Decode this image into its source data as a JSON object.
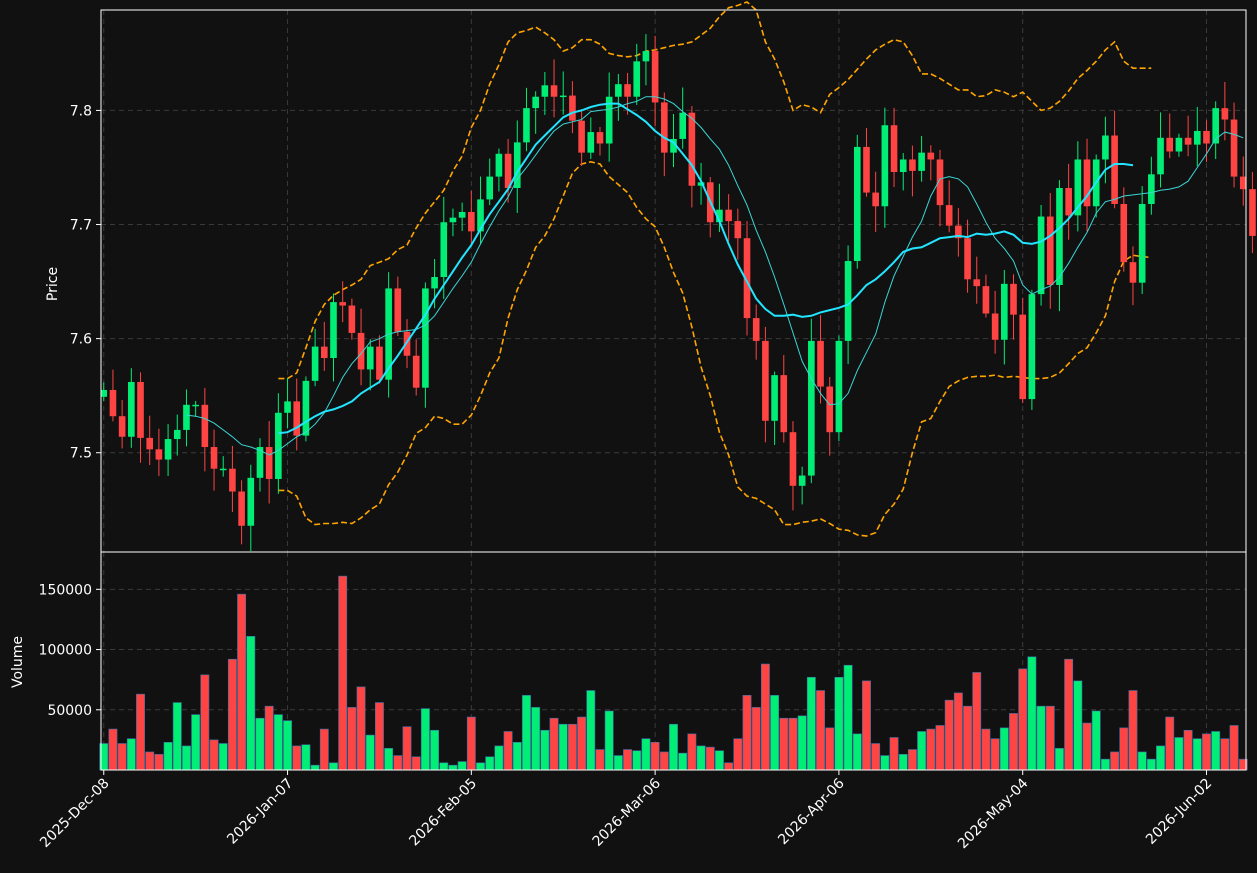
{
  "chart_data": {
    "type": "candlestick",
    "colors": {
      "background": "#111111",
      "grid": "#3a3a3a",
      "frame": "#ffffff",
      "up": "#00ee76",
      "down": "#ff4444",
      "ma_short": "#3ad6d6",
      "ma_long": "#22e5ff",
      "bollinger": "#ffa500"
    },
    "x_ticks": [
      "2025-Dec-08",
      "2026-Jan-07",
      "2026-Feb-05",
      "2026-Mar-06",
      "2026-Apr-06",
      "2026-May-04",
      "2026-Jun-02"
    ],
    "x_tick_indices": [
      0,
      20,
      40,
      60,
      80,
      100,
      120
    ],
    "x_range": [
      -0.3,
      124.3
    ],
    "price_panel": {
      "ylabel": "Price",
      "ylim": [
        7.413,
        7.888
      ],
      "y_ticks": [
        7.5,
        7.6,
        7.7,
        7.8
      ],
      "closes": [
        7.555,
        7.532,
        7.514,
        7.562,
        7.513,
        7.503,
        7.494,
        7.512,
        7.52,
        7.542,
        7.542,
        7.505,
        7.486,
        7.486,
        7.466,
        7.436,
        7.478,
        7.505,
        7.477,
        7.535,
        7.545,
        7.515,
        7.563,
        7.593,
        7.583,
        7.632,
        7.629,
        7.605,
        7.573,
        7.593,
        7.564,
        7.644,
        7.606,
        7.585,
        7.557,
        7.644,
        7.654,
        7.702,
        7.706,
        7.711,
        7.694,
        7.722,
        7.742,
        7.762,
        7.732,
        7.772,
        7.802,
        7.812,
        7.822,
        7.812,
        7.813,
        7.791,
        7.763,
        7.781,
        7.771,
        7.812,
        7.823,
        7.812,
        7.843,
        7.852,
        7.807,
        7.763,
        7.775,
        7.798,
        7.734,
        7.737,
        7.702,
        7.713,
        7.703,
        7.688,
        7.618,
        7.598,
        7.528,
        7.568,
        7.518,
        7.471,
        7.48,
        7.598,
        7.558,
        7.518,
        7.598,
        7.668,
        7.768,
        7.728,
        7.716,
        7.787,
        7.746,
        7.757,
        7.747,
        7.763,
        7.757,
        7.717,
        7.699,
        7.688,
        7.652,
        7.646,
        7.622,
        7.599,
        7.648,
        7.621,
        7.547,
        7.639,
        7.707,
        7.647,
        7.732,
        7.708,
        7.757,
        7.716,
        7.757,
        7.778,
        7.718,
        7.667,
        7.649,
        7.718,
        7.744,
        7.776,
        7.764,
        7.776,
        7.77,
        7.782,
        7.771,
        7.802,
        7.792,
        7.742,
        7.731,
        7.69
      ],
      "ma_short": [
        null,
        null,
        null,
        null,
        null,
        null,
        null,
        null,
        null,
        7.533,
        7.532,
        7.53,
        7.526,
        7.52,
        7.514,
        7.507,
        7.505,
        7.502,
        7.498,
        7.502,
        7.508,
        7.514,
        7.518,
        7.525,
        7.535,
        7.55,
        7.566,
        7.578,
        7.587,
        7.597,
        7.6,
        7.604,
        7.606,
        7.607,
        7.608,
        7.612,
        7.62,
        7.632,
        7.644,
        7.655,
        7.667,
        7.683,
        7.698,
        7.712,
        7.724,
        7.74,
        7.75,
        7.761,
        7.772,
        7.782,
        7.788,
        7.79,
        7.792,
        7.799,
        7.8,
        7.801,
        7.803,
        7.806,
        7.808,
        7.812,
        7.812,
        7.81,
        7.806,
        7.799,
        7.793,
        7.785,
        7.775,
        7.766,
        7.752,
        7.734,
        7.717,
        7.695,
        7.676,
        7.654,
        7.63,
        7.605,
        7.58,
        7.565,
        7.552,
        7.542,
        7.543,
        7.552,
        7.572,
        7.588,
        7.604,
        7.632,
        7.655,
        7.672,
        7.689,
        7.703,
        7.725,
        7.74,
        7.742,
        7.74,
        7.733,
        7.718,
        7.702,
        7.688,
        7.679,
        7.668,
        7.647,
        7.639,
        7.643,
        7.646,
        7.654,
        7.666,
        7.68,
        7.693,
        7.71,
        7.72,
        7.722,
        7.725,
        7.726,
        7.727,
        7.728,
        7.73,
        7.731,
        7.733,
        7.738,
        7.75,
        7.762,
        7.775,
        7.781,
        7.779,
        7.776
      ],
      "ma_long": [
        null,
        null,
        null,
        null,
        null,
        null,
        null,
        null,
        null,
        null,
        null,
        null,
        null,
        null,
        null,
        null,
        null,
        null,
        null,
        7.517,
        7.518,
        7.522,
        7.527,
        7.532,
        7.536,
        7.538,
        7.541,
        7.545,
        7.552,
        7.557,
        7.562,
        7.574,
        7.585,
        7.597,
        7.609,
        7.621,
        7.635,
        7.647,
        7.659,
        7.671,
        7.682,
        7.696,
        7.709,
        7.72,
        7.731,
        7.746,
        7.758,
        7.77,
        7.778,
        7.786,
        7.794,
        7.798,
        7.8,
        7.803,
        7.805,
        7.806,
        7.806,
        7.801,
        7.796,
        7.79,
        7.782,
        7.776,
        7.772,
        7.762,
        7.752,
        7.738,
        7.72,
        7.703,
        7.683,
        7.665,
        7.65,
        7.635,
        7.626,
        7.62,
        7.62,
        7.621,
        7.619,
        7.62,
        7.623,
        7.625,
        7.627,
        7.63,
        7.638,
        7.647,
        7.652,
        7.659,
        7.667,
        7.676,
        7.679,
        7.68,
        7.684,
        7.688,
        7.689,
        7.69,
        7.689,
        7.692,
        7.691,
        7.692,
        7.694,
        7.691,
        7.684,
        7.683,
        7.685,
        7.69,
        7.697,
        7.705,
        7.715,
        7.725,
        7.737,
        7.748,
        7.753,
        7.753,
        7.752
      ],
      "bb_upper": [
        null,
        null,
        null,
        null,
        null,
        null,
        null,
        null,
        null,
        null,
        null,
        null,
        null,
        null,
        null,
        null,
        null,
        null,
        null,
        7.565,
        7.565,
        7.57,
        7.592,
        7.615,
        7.63,
        7.638,
        7.643,
        7.647,
        7.652,
        7.664,
        7.667,
        7.67,
        7.678,
        7.682,
        7.697,
        7.71,
        7.72,
        7.73,
        7.747,
        7.76,
        7.785,
        7.8,
        7.823,
        7.84,
        7.86,
        7.868,
        7.87,
        7.873,
        7.868,
        7.862,
        7.852,
        7.855,
        7.862,
        7.862,
        7.858,
        7.85,
        7.848,
        7.847,
        7.848,
        7.852,
        7.853,
        7.855,
        7.857,
        7.858,
        7.86,
        7.866,
        7.872,
        7.882,
        7.89,
        7.892,
        7.895,
        7.888,
        7.86,
        7.845,
        7.825,
        7.8,
        7.805,
        7.803,
        7.798,
        7.814,
        7.82,
        7.827,
        7.836,
        7.845,
        7.853,
        7.858,
        7.862,
        7.86,
        7.848,
        7.832,
        7.832,
        7.828,
        7.823,
        7.818,
        7.818,
        7.812,
        7.813,
        7.818,
        7.816,
        7.812,
        7.816,
        7.808,
        7.8,
        7.802,
        7.808,
        7.817,
        7.828,
        7.835,
        7.843,
        7.853,
        7.86,
        7.843,
        7.837,
        7.837,
        7.837
      ],
      "bb_lower": [
        null,
        null,
        null,
        null,
        null,
        null,
        null,
        null,
        null,
        null,
        null,
        null,
        null,
        null,
        null,
        null,
        null,
        null,
        null,
        7.467,
        7.467,
        7.462,
        7.443,
        7.437,
        7.438,
        7.438,
        7.439,
        7.438,
        7.443,
        7.45,
        7.455,
        7.472,
        7.483,
        7.498,
        7.517,
        7.522,
        7.532,
        7.53,
        7.525,
        7.525,
        7.533,
        7.55,
        7.57,
        7.583,
        7.618,
        7.643,
        7.66,
        7.68,
        7.69,
        7.705,
        7.725,
        7.745,
        7.753,
        7.755,
        7.753,
        7.742,
        7.735,
        7.728,
        7.715,
        7.705,
        7.698,
        7.68,
        7.658,
        7.64,
        7.61,
        7.575,
        7.55,
        7.518,
        7.498,
        7.47,
        7.462,
        7.46,
        7.455,
        7.45,
        7.437,
        7.437,
        7.439,
        7.44,
        7.442,
        7.438,
        7.433,
        7.432,
        7.428,
        7.427,
        7.43,
        7.446,
        7.455,
        7.468,
        7.5,
        7.527,
        7.53,
        7.545,
        7.558,
        7.563,
        7.566,
        7.567,
        7.567,
        7.568,
        7.566,
        7.567,
        7.566,
        7.565,
        7.565,
        7.566,
        7.57,
        7.578,
        7.587,
        7.592,
        7.605,
        7.62,
        7.65,
        7.668,
        7.673,
        7.672,
        7.671
      ],
      "series": [
        {
          "name": "",
          "kind": "ohlc"
        },
        {
          "name": "",
          "kind": "ma_short"
        },
        {
          "name": "",
          "kind": "ma_long"
        },
        {
          "name": "",
          "kind": "bollinger"
        }
      ]
    },
    "volume_panel": {
      "ylabel": "Volume",
      "ylim": [
        0,
        181000
      ],
      "y_ticks": [
        50000,
        100000,
        150000
      ],
      "values": [
        22000,
        34000,
        22000,
        26000,
        63000,
        15000,
        13000,
        23000,
        56000,
        20000,
        46000,
        79000,
        25000,
        22000,
        92000,
        146000,
        111000,
        43000,
        53000,
        46000,
        41000,
        20000,
        21000,
        4000,
        34000,
        6000,
        161000,
        52000,
        69000,
        29000,
        56000,
        18000,
        12000,
        36000,
        11000,
        51000,
        33000,
        6000,
        4000,
        7000,
        44000,
        6000,
        11000,
        20000,
        32000,
        23000,
        62000,
        52000,
        33000,
        43000,
        38000,
        38000,
        44000,
        66000,
        17000,
        49000,
        12000,
        17000,
        16000,
        26000,
        23000,
        15000,
        38000,
        14000,
        30000,
        20000,
        19000,
        16000,
        6000,
        26000,
        62000,
        52000,
        88000,
        62000,
        43000,
        43000,
        45000,
        77000,
        66000,
        35000,
        77000,
        87000,
        30000,
        74000,
        22000,
        12000,
        27000,
        13000,
        17000,
        32000,
        34000,
        37000,
        58000,
        64000,
        53000,
        81000,
        34000,
        26000,
        35000,
        47000,
        84000,
        94000,
        53000,
        53000,
        18000,
        92000,
        74000,
        39000,
        49000,
        9000,
        15000,
        35000,
        66000,
        15000,
        9000,
        20000,
        44000,
        27000,
        33000,
        26000,
        30000,
        32000,
        26000,
        37000,
        9000
      ]
    }
  }
}
